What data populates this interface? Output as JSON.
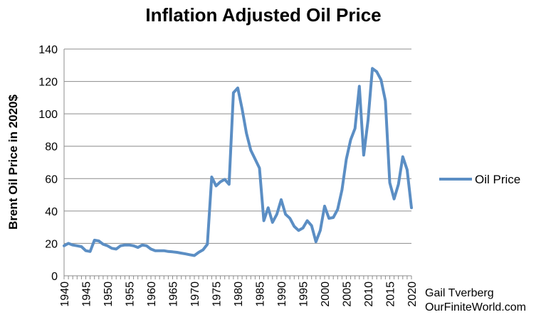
{
  "chart_data": {
    "type": "line",
    "title": "Inflation Adjusted Oil Price",
    "xlabel": "",
    "ylabel": "Brent Oil Price in 2020$",
    "xlim": [
      1940,
      2020
    ],
    "ylim": [
      0,
      140
    ],
    "yticks": [
      0,
      20,
      40,
      60,
      80,
      100,
      120,
      140
    ],
    "xticks": [
      1940,
      1945,
      1950,
      1955,
      1960,
      1965,
      1970,
      1975,
      1980,
      1985,
      1990,
      1995,
      2000,
      2005,
      2010,
      2015,
      2020
    ],
    "grid": "horizontal",
    "legend_position": "right",
    "color": "#5b8ec4",
    "series": [
      {
        "name": "Oil Price",
        "x": [
          1940,
          1941,
          1942,
          1943,
          1944,
          1945,
          1946,
          1947,
          1948,
          1949,
          1950,
          1951,
          1952,
          1953,
          1954,
          1955,
          1956,
          1957,
          1958,
          1959,
          1960,
          1961,
          1962,
          1963,
          1964,
          1965,
          1966,
          1967,
          1968,
          1969,
          1970,
          1971,
          1972,
          1973,
          1974,
          1975,
          1976,
          1977,
          1978,
          1979,
          1980,
          1981,
          1982,
          1983,
          1984,
          1985,
          1986,
          1987,
          1988,
          1989,
          1990,
          1991,
          1992,
          1993,
          1994,
          1995,
          1996,
          1997,
          1998,
          1999,
          2000,
          2001,
          2002,
          2003,
          2004,
          2005,
          2006,
          2007,
          2008,
          2009,
          2010,
          2011,
          2012,
          2013,
          2014,
          2015,
          2016,
          2017,
          2018,
          2019,
          2020
        ],
        "values": [
          18.5,
          20,
          19,
          18.5,
          18,
          15.5,
          15,
          22,
          21.5,
          19.5,
          18.5,
          17,
          16.5,
          18.5,
          19,
          19,
          18.5,
          17.5,
          19,
          18.5,
          16.5,
          15.5,
          15.5,
          15.5,
          15,
          14.8,
          14.5,
          14,
          13.5,
          13,
          12.5,
          14.5,
          16,
          19.5,
          61,
          55.5,
          58,
          59.5,
          56.5,
          113,
          116,
          103,
          88,
          77.5,
          72,
          66.5,
          34,
          42,
          33,
          38,
          47,
          38,
          35.5,
          30.5,
          28,
          29.5,
          34,
          31,
          21,
          28,
          43,
          35.5,
          36,
          41,
          53,
          72,
          84,
          91,
          117,
          74.5,
          96,
          128,
          126,
          121,
          108,
          57.5,
          47.5,
          56.5,
          73.5,
          65.5,
          42
        ]
      }
    ],
    "annotations": [
      "Gail Tverberg",
      "OurFiniteWorld.com"
    ]
  }
}
